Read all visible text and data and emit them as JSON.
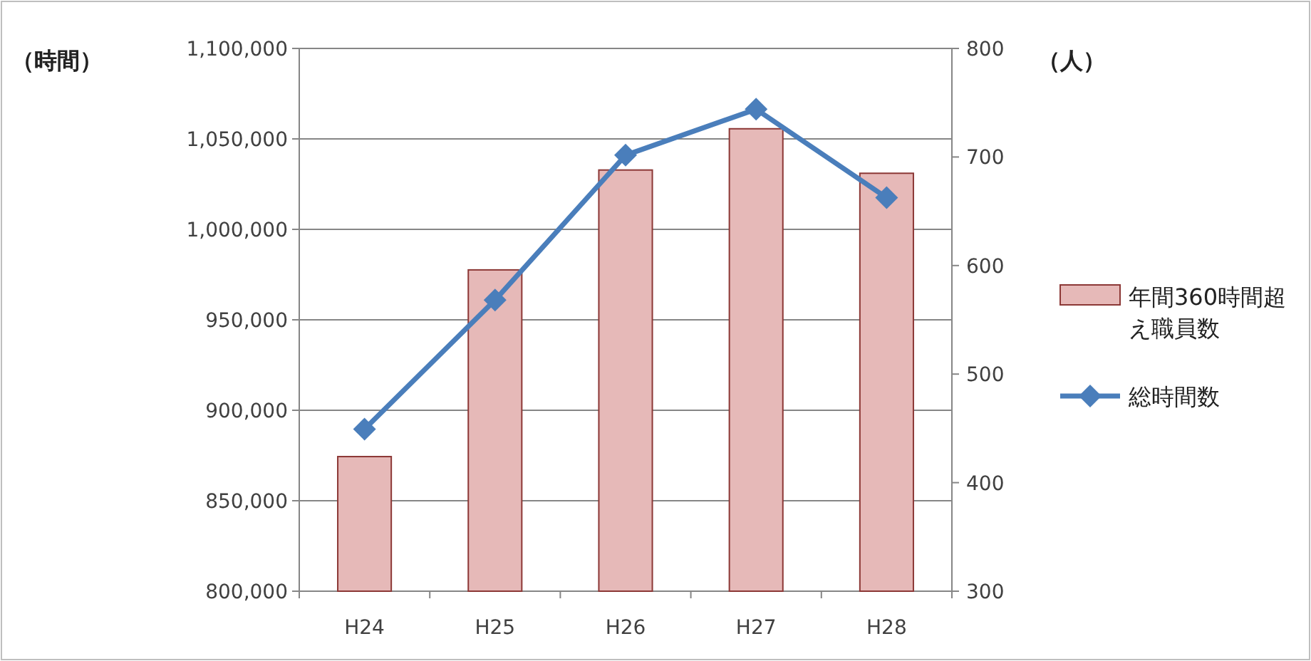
{
  "chart_data": {
    "type": "bar",
    "categories": [
      "H24",
      "H25",
      "H26",
      "H27",
      "H28"
    ],
    "ylabel": "（時間）",
    "y2label": "（人）",
    "ylim": [
      800000,
      1100000
    ],
    "yticks": [
      {
        "value": 800000,
        "label": "800,000"
      },
      {
        "value": 850000,
        "label": "850,000"
      },
      {
        "value": 900000,
        "label": "900,000"
      },
      {
        "value": 950000,
        "label": "950,000"
      },
      {
        "value": 1000000,
        "label": "1,000,000"
      },
      {
        "value": 1050000,
        "label": "1,050,000"
      },
      {
        "value": 1100000,
        "label": "1,100,000"
      }
    ],
    "y2lim": [
      300,
      800
    ],
    "y2ticks": [
      300,
      400,
      500,
      600,
      700,
      800
    ],
    "grid": "y",
    "legend": "right",
    "series": [
      {
        "name": "年間360時間超え職員数",
        "axis": "y2",
        "color": "#e6b9b8",
        "values": [
          424,
          596,
          688,
          726,
          685
        ]
      },
      {
        "name": "総時間数",
        "type": "line",
        "axis": "y",
        "color": "#4a7ebb",
        "marker": "diamond",
        "values": [
          889600,
          960900,
          1041000,
          1066400,
          1017500
        ]
      }
    ]
  }
}
